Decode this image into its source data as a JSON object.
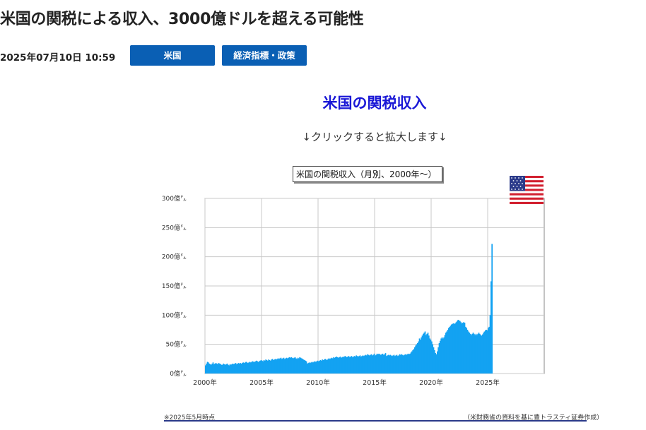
{
  "article": {
    "headline": "米国の関税による収入、3000億ドルを超える可能性",
    "date": "2025年07月10日 10:59",
    "tags": [
      "米国",
      "経済指標・政策"
    ],
    "content_title": "米国の関税収入",
    "click_hint": "↓クリックすると拡大します↓"
  },
  "figure": {
    "note_left": "※2025年5月時点",
    "note_right": "（米財務省の資料を基に豊トラスティ証券作成）",
    "flag_icon": "us-flag-icon"
  },
  "chart_data": {
    "type": "bar",
    "title": "米国の関税収入（月別、2000年～）",
    "xlabel": "",
    "ylabel": "",
    "unit": "億ドル",
    "x_start": 2000,
    "x_tick_labels": [
      "2000年",
      "2005年",
      "2010年",
      "2015年",
      "2020年",
      "2025年"
    ],
    "x_range": [
      2000,
      2030
    ],
    "ylim": [
      0,
      300
    ],
    "y_tick_labels": [
      "0億㌦",
      "50億㌦",
      "100億㌦",
      "150億㌦",
      "200億㌦",
      "250億㌦",
      "300億㌦"
    ],
    "grid": true,
    "bar_color": "#13a2f2",
    "values_note": "monthly values, Jan 2000 through May 2025 (approx. read from chart)",
    "yearly_values": [
      [
        14,
        17,
        20,
        19,
        17,
        16,
        15,
        17,
        19,
        16,
        17,
        18
      ],
      [
        17,
        16,
        18,
        17,
        16,
        15,
        15,
        17,
        16,
        15,
        16,
        17
      ],
      [
        15,
        14,
        16,
        15,
        16,
        17,
        16,
        17,
        18,
        16,
        17,
        18
      ],
      [
        17,
        18,
        17,
        18,
        19,
        18,
        19,
        20,
        19,
        18,
        19,
        20
      ],
      [
        19,
        20,
        21,
        20,
        20,
        21,
        22,
        21,
        20,
        21,
        22,
        23
      ],
      [
        22,
        21,
        23,
        22,
        24,
        23,
        22,
        24,
        23,
        22,
        24,
        25
      ],
      [
        23,
        24,
        25,
        24,
        25,
        26,
        25,
        26,
        27,
        25,
        26,
        27
      ],
      [
        25,
        26,
        27,
        26,
        27,
        28,
        27,
        28,
        27,
        26,
        27,
        28
      ],
      [
        26,
        25,
        27,
        26,
        28,
        27,
        26,
        25,
        24,
        23,
        22,
        21
      ],
      [
        17,
        18,
        19,
        18,
        19,
        20,
        19,
        20,
        21,
        20,
        21,
        22
      ],
      [
        21,
        22,
        23,
        22,
        24,
        23,
        24,
        25,
        24,
        23,
        25,
        26
      ],
      [
        25,
        26,
        27,
        26,
        28,
        27,
        28,
        29,
        28,
        27,
        28,
        29
      ],
      [
        27,
        28,
        29,
        28,
        30,
        29,
        28,
        29,
        30,
        28,
        29,
        30
      ],
      [
        28,
        29,
        30,
        29,
        31,
        30,
        29,
        30,
        31,
        29,
        30,
        31
      ],
      [
        30,
        31,
        32,
        31,
        33,
        32,
        31,
        32,
        33,
        31,
        32,
        34
      ],
      [
        31,
        32,
        34,
        33,
        34,
        33,
        32,
        33,
        34,
        32,
        33,
        35
      ],
      [
        30,
        31,
        32,
        31,
        32,
        31,
        30,
        31,
        32,
        30,
        31,
        32
      ],
      [
        30,
        31,
        33,
        32,
        33,
        32,
        31,
        32,
        33,
        32,
        33,
        34
      ],
      [
        33,
        34,
        36,
        38,
        40,
        42,
        45,
        48,
        50,
        52,
        55,
        60
      ],
      [
        58,
        62,
        65,
        68,
        70,
        72,
        66,
        68,
        70,
        65,
        60,
        58
      ],
      [
        55,
        50,
        45,
        40,
        35,
        33,
        38,
        45,
        52,
        56,
        60,
        62
      ],
      [
        60,
        62,
        66,
        70,
        72,
        75,
        78,
        80,
        82,
        84,
        85,
        86
      ],
      [
        85,
        86,
        88,
        90,
        92,
        91,
        90,
        88,
        86,
        87,
        88,
        87
      ],
      [
        80,
        78,
        75,
        72,
        70,
        68,
        66,
        68,
        70,
        68,
        66,
        68
      ],
      [
        66,
        68,
        70,
        68,
        66,
        65,
        67,
        70,
        72,
        74,
        75,
        74
      ],
      [
        78,
        80,
        100,
        158,
        222
      ]
    ]
  }
}
